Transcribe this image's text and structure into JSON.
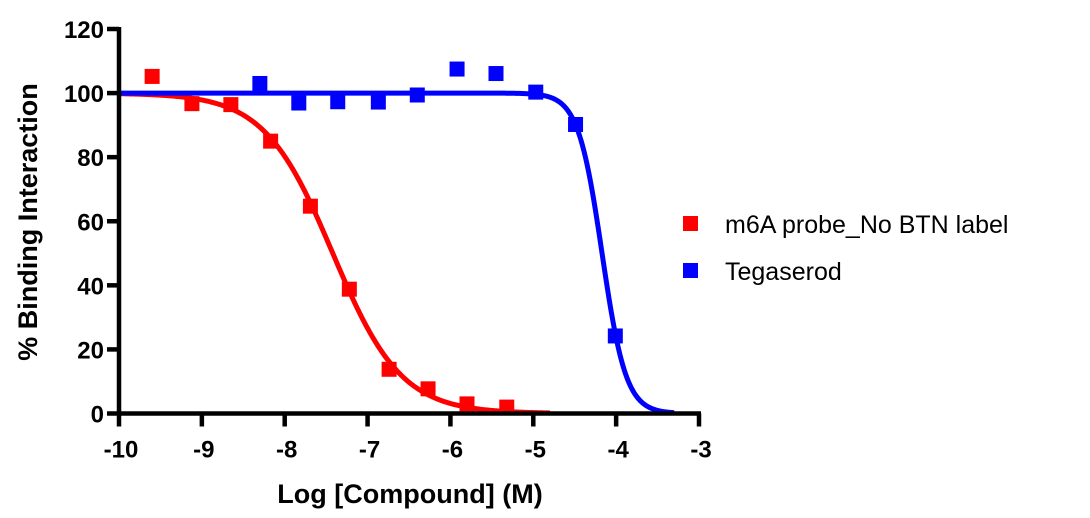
{
  "chart_data": {
    "type": "scatter",
    "title": "",
    "xlabel": "Log [Compound] (M)",
    "ylabel": "% Binding Interaction",
    "xlim": [
      -10,
      -3
    ],
    "ylim": [
      0,
      120
    ],
    "xticks": [
      -10,
      -9,
      -8,
      -7,
      -6,
      -5,
      -4,
      -3
    ],
    "yticks": [
      0,
      20,
      40,
      60,
      80,
      100,
      120
    ],
    "xtick_labels": [
      "-10",
      "-9",
      "-8",
      "-7",
      "-6",
      "-5",
      "-4",
      "-3"
    ],
    "ytick_labels": [
      "0",
      "20",
      "40",
      "60",
      "80",
      "100",
      "120"
    ],
    "grid": false,
    "legend_position": "right",
    "series": [
      {
        "name": "m6A probe_No BTN label",
        "color": "#ff0000",
        "marker": "square",
        "x": [
          -9.6,
          -9.12,
          -8.65,
          -8.17,
          -7.69,
          -7.22,
          -6.74,
          -6.27,
          -5.8,
          -5.32
        ],
        "y": [
          105.2,
          96.7,
          96.4,
          85.0,
          64.7,
          38.8,
          13.8,
          7.7,
          3.0,
          2.0
        ],
        "fit": {
          "model": "sigmoidal dose-response",
          "top": 100,
          "bottom": 0,
          "log_ic50": -7.42,
          "hill": 1.05,
          "x_range": [
            -10,
            -4.8
          ]
        }
      },
      {
        "name": "Tegaserod",
        "color": "#0000ff",
        "marker": "square",
        "x": [
          -8.3,
          -7.83,
          -7.36,
          -6.87,
          -6.4,
          -5.92,
          -5.45,
          -4.97,
          -4.49,
          -4.01
        ],
        "y": [
          103.0,
          96.9,
          97.3,
          97.2,
          99.4,
          107.5,
          106.1,
          100.3,
          90.2,
          24.2
        ],
        "fit": {
          "model": "sigmoidal dose-response",
          "top": 100,
          "bottom": 0,
          "log_ic50": -4.17,
          "hill": 3.0,
          "x_range": [
            -10,
            -3.3
          ]
        }
      }
    ]
  }
}
